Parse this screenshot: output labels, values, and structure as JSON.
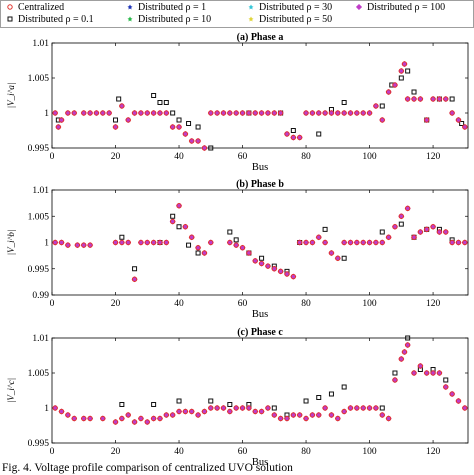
{
  "caption": "Fig. 4. Voltage profile comparison of centralized UVO solution",
  "legend": [
    {
      "label": "Centralized",
      "marker": "circle-open",
      "color": "#e0302a"
    },
    {
      "label": "Distributed ρ = 1",
      "marker": "star",
      "color": "#1f35b8"
    },
    {
      "label": "Distributed ρ = 30",
      "marker": "star",
      "color": "#38c7d8"
    },
    {
      "label": "Distributed ρ = 100",
      "marker": "diamond",
      "color": "#c03cc8"
    },
    {
      "label": "Distributed ρ = 0.1",
      "marker": "square-open",
      "color": "#111111"
    },
    {
      "label": "Distributed ρ = 10",
      "marker": "star",
      "color": "#2ab94a"
    },
    {
      "label": "Distributed ρ = 50",
      "marker": "star",
      "color": "#e0d53a"
    }
  ],
  "chart_data": [
    {
      "type": "scatter",
      "title": "(a) Phase a",
      "xlabel": "Bus",
      "ylabel": "|V_i^a|",
      "xlim": [
        0,
        131
      ],
      "ylim": [
        0.995,
        1.01
      ],
      "xticks": [
        0,
        20,
        40,
        60,
        80,
        100,
        120
      ],
      "yticks": [
        0.995,
        1,
        1.005,
        1.01
      ],
      "ytick_labels": [
        "0.995",
        "1",
        "1.005",
        "1.01"
      ],
      "series": [
        {
          "name": "Centralized",
          "x": [
            1,
            2,
            3,
            5,
            7,
            10,
            12,
            14,
            16,
            18,
            20,
            22,
            24,
            26,
            28,
            30,
            32,
            34,
            36,
            38,
            40,
            42,
            44,
            46,
            48,
            50,
            52,
            54,
            56,
            58,
            60,
            62,
            64,
            66,
            68,
            70,
            72,
            74,
            76,
            78,
            80,
            82,
            84,
            86,
            88,
            90,
            92,
            94,
            96,
            98,
            100,
            102,
            104,
            106,
            108,
            110,
            111,
            112,
            114,
            116,
            118,
            120,
            122,
            124,
            126,
            128,
            130
          ],
          "y": [
            1.0,
            0.998,
            0.999,
            1.0,
            1.0,
            1.0,
            1.0,
            1.0,
            1.0,
            1.0,
            0.998,
            1.001,
            0.999,
            1.0,
            1.0,
            1.0,
            1.0,
            1.0,
            1.0,
            0.998,
            0.998,
            0.997,
            0.996,
            0.996,
            0.995,
            1.0,
            1.0,
            1.0,
            1.0,
            1.0,
            1.0,
            1.0,
            1.0,
            1.0,
            1.0,
            1.0,
            1.0,
            0.997,
            0.9965,
            0.9965,
            1.0,
            1.0,
            1.0,
            1.0,
            1.0,
            1.0,
            1.0,
            1.0,
            1.0,
            1.0,
            1.0,
            1.001,
            0.999,
            1.003,
            1.004,
            1.006,
            1.007,
            1.002,
            1.002,
            1.002,
            0.999,
            1.002,
            1.002,
            1.002,
            1.0,
            0.999,
            0.998
          ]
        },
        {
          "name": "Distributed ρ = 0.1",
          "x": [
            2,
            20,
            21,
            32,
            34,
            36,
            38,
            40,
            43,
            46,
            50,
            62,
            72,
            76,
            84,
            88,
            92,
            104,
            107,
            110,
            112,
            114,
            118,
            122,
            126,
            129
          ],
          "y": [
            0.999,
            0.999,
            1.002,
            1.0025,
            1.0015,
            1.0015,
            1.0,
            0.999,
            0.9985,
            0.998,
            0.995,
            1.0,
            1.0,
            0.9975,
            0.997,
            1.0005,
            1.0015,
            1.001,
            1.004,
            1.005,
            1.006,
            1.003,
            0.999,
            1.002,
            1.002,
            0.9985
          ]
        }
      ]
    },
    {
      "type": "scatter",
      "title": "(b) Phase b",
      "xlabel": "Bus",
      "ylabel": "|V_i^b|",
      "xlim": [
        0,
        131
      ],
      "ylim": [
        0.99,
        1.01
      ],
      "xticks": [
        0,
        20,
        40,
        60,
        80,
        100,
        120
      ],
      "yticks": [
        0.99,
        0.995,
        1,
        1.005,
        1.01
      ],
      "ytick_labels": [
        "0.99",
        "0.995",
        "1",
        "1.005",
        "1.01"
      ],
      "series": [
        {
          "name": "Centralized",
          "x": [
            1,
            3,
            5,
            8,
            10,
            12,
            20,
            22,
            24,
            26,
            28,
            30,
            32,
            34,
            36,
            38,
            40,
            42,
            44,
            46,
            48,
            50,
            56,
            58,
            60,
            62,
            64,
            66,
            68,
            70,
            72,
            74,
            76,
            78,
            80,
            82,
            84,
            86,
            88,
            90,
            92,
            94,
            96,
            98,
            100,
            102,
            104,
            106,
            108,
            110,
            112,
            114,
            116,
            118,
            120,
            122,
            124,
            126,
            128,
            130
          ],
          "y": [
            1.0,
            1.0,
            0.9995,
            0.9995,
            0.9995,
            0.9995,
            1.0,
            1.0,
            1.0,
            0.993,
            1.0,
            1.0,
            1.0,
            1.0,
            1.0,
            1.004,
            1.007,
            1.003,
            1.001,
            0.999,
            0.998,
            1.0,
            1.0,
            0.9995,
            0.999,
            0.998,
            0.9965,
            0.996,
            0.9955,
            0.995,
            0.9945,
            0.994,
            0.9935,
            1.0,
            1.0,
            1.0,
            1.001,
            1.0,
            0.998,
            0.997,
            1.0,
            1.0,
            1.0,
            1.0,
            1.0,
            1.0,
            1.0,
            1.001,
            1.003,
            1.005,
            1.0065,
            1.001,
            1.002,
            1.0025,
            1.003,
            1.002,
            1.002,
            1.0,
            1.0,
            1.0
          ]
        },
        {
          "name": "Distributed ρ = 0.1",
          "x": [
            22,
            26,
            34,
            38,
            40,
            43,
            46,
            56,
            58,
            62,
            66,
            70,
            74,
            78,
            86,
            92,
            104,
            110,
            114,
            118,
            122,
            126
          ],
          "y": [
            1.001,
            0.995,
            1.0,
            1.005,
            1.003,
            0.9995,
            0.998,
            1.002,
            1.0005,
            0.998,
            0.997,
            0.9955,
            0.9945,
            1.0,
            1.0025,
            0.997,
            1.002,
            1.0035,
            1.001,
            1.0025,
            1.0025,
            1.0005
          ]
        }
      ]
    },
    {
      "type": "scatter",
      "title": "(c) Phase c",
      "xlabel": "Bus",
      "ylabel": "|V_i^c|",
      "xlim": [
        0,
        131
      ],
      "ylim": [
        0.995,
        1.01
      ],
      "xticks": [
        0,
        20,
        40,
        60,
        80,
        100,
        120
      ],
      "yticks": [
        0.995,
        1,
        1.005,
        1.01
      ],
      "ytick_labels": [
        "0.995",
        "1",
        "1.005",
        "1.01"
      ],
      "series": [
        {
          "name": "Centralized",
          "x": [
            1,
            3,
            5,
            7,
            10,
            12,
            16,
            20,
            22,
            24,
            26,
            28,
            30,
            32,
            34,
            36,
            38,
            40,
            42,
            44,
            46,
            48,
            50,
            52,
            54,
            56,
            58,
            60,
            62,
            64,
            66,
            68,
            70,
            72,
            74,
            76,
            78,
            80,
            82,
            84,
            86,
            88,
            90,
            92,
            94,
            96,
            98,
            100,
            102,
            104,
            106,
            108,
            110,
            111,
            112,
            114,
            116,
            118,
            120,
            122,
            124,
            126,
            128,
            130
          ],
          "y": [
            1.0,
            0.9995,
            0.999,
            0.9985,
            0.9985,
            0.9985,
            0.9985,
            0.998,
            0.9985,
            0.999,
            0.998,
            0.9985,
            0.998,
            0.9985,
            0.9985,
            0.999,
            0.999,
            0.9995,
            0.9995,
            0.9995,
            0.999,
            0.9995,
            1.0,
            1.0,
            1.0,
            0.9995,
            1.0,
            1.0,
            1.0,
            0.9995,
            0.9995,
            1.0,
            0.999,
            0.9985,
            0.9985,
            0.999,
            0.999,
            0.9985,
            0.999,
            0.999,
            1.0,
            0.999,
            0.9985,
            0.9995,
            1.0,
            1.0,
            1.0,
            1.0,
            1.0,
            0.999,
            0.9985,
            1.004,
            1.007,
            1.008,
            1.009,
            1.005,
            1.006,
            1.005,
            1.005,
            1.005,
            1.003,
            1.002,
            1.001,
            1.0
          ]
        },
        {
          "name": "Distributed ρ = 0.1",
          "x": [
            22,
            32,
            40,
            50,
            56,
            62,
            70,
            74,
            80,
            84,
            88,
            92,
            104,
            108,
            112,
            116,
            120,
            124
          ],
          "y": [
            1.0005,
            1.0005,
            1.001,
            1.001,
            1.0005,
            1.0005,
            1.0,
            0.999,
            1.001,
            1.0015,
            1.002,
            1.003,
            1.0,
            1.005,
            1.01,
            1.0055,
            1.0055,
            1.004
          ]
        }
      ]
    }
  ]
}
